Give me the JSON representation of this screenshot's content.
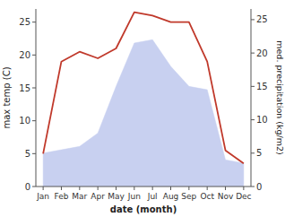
{
  "chart_data": {
    "type": "line",
    "x_label": "date (month)",
    "y_label": "max temp (C)",
    "y2_label": "med. precipitation (kg/m2)",
    "categories": [
      "Jan",
      "Feb",
      "Mar",
      "Apr",
      "May",
      "Jun",
      "Jul",
      "Aug",
      "Sep",
      "Oct",
      "Nov",
      "Dec"
    ],
    "series": [
      {
        "type": "area",
        "axis": "y2",
        "color": "#c8d0f0",
        "values": [
          5,
          5.5,
          6,
          8,
          15,
          21.5,
          22,
          18,
          15,
          14.5,
          4,
          3.5
        ]
      },
      {
        "type": "line",
        "color": "#c0392b",
        "values": [
          5,
          19,
          20.5,
          19.5,
          21,
          26.5,
          26,
          25,
          25,
          19,
          5.5,
          3.5
        ]
      }
    ],
    "ylim": [
      0,
      27
    ],
    "yticks": [
      0,
      5,
      10,
      15,
      20,
      25
    ],
    "y2lim": [
      0,
      26.6
    ],
    "y2ticks": [
      0,
      5,
      10,
      15,
      20,
      25
    ],
    "grid": false
  }
}
